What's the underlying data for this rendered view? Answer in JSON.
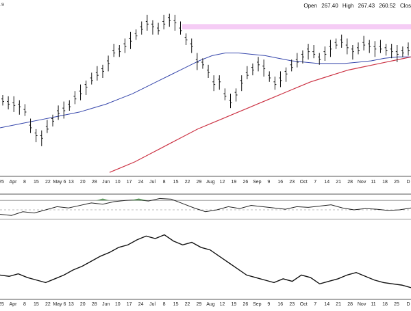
{
  "header": {
    "corner_fragment": ".9",
    "open_label": "Open",
    "open_value": "267.40",
    "high_label": "High",
    "high_value": "267.43",
    "low_value": "260.52",
    "close_label": "Clos"
  },
  "chart_data": [
    {
      "type": "ohlc-bar",
      "x_labels": [
        "25",
        "Apr",
        "8",
        "15",
        "22",
        "May 6",
        "13",
        "20",
        "28",
        "Jun",
        "10",
        "17",
        "24",
        "Jul",
        "8",
        "15",
        "22",
        "29",
        "Aug",
        "12",
        "19",
        "26",
        "Sep",
        "9",
        "16",
        "23",
        "Oct",
        "7",
        "14",
        "21",
        "28",
        "Nov",
        "11",
        "18",
        "25",
        "D"
      ],
      "series": [
        {
          "name": "price",
          "values": [
            208,
            206,
            205,
            204,
            200,
            188,
            182,
            180,
            187,
            193,
            199,
            201,
            204,
            210,
            214,
            219,
            224,
            228,
            231,
            237,
            245,
            246,
            250,
            254,
            258,
            263,
            267,
            265,
            262,
            267,
            270,
            268,
            262,
            255,
            250,
            238,
            236,
            230,
            221,
            223,
            212,
            207,
            213,
            222,
            228,
            232,
            236,
            233,
            226,
            221,
            224,
            229,
            234,
            238,
            242,
            246,
            244,
            240,
            244,
            248,
            251,
            253,
            249,
            246,
            247,
            251,
            250,
            248,
            248,
            247,
            246,
            244,
            245,
            247
          ]
        },
        {
          "name": "ma-50",
          "values": [
            187,
            189,
            191,
            193,
            195,
            197,
            199,
            202,
            205,
            209,
            213,
            218,
            223,
            228,
            233,
            238,
            242,
            244,
            244,
            243,
            242,
            240,
            238,
            237,
            236,
            236,
            236,
            237,
            238,
            240,
            241,
            241
          ]
        },
        {
          "name": "ma-200",
          "values": [
            153,
            157,
            161,
            166,
            171,
            176,
            181,
            186,
            190,
            194,
            198,
            202,
            206,
            210,
            214,
            218,
            222,
            225,
            228,
            231,
            233,
            235,
            237,
            239,
            241
          ]
        },
        {
          "name": "resistance-zone",
          "values": [
            262,
            266
          ]
        }
      ]
    },
    {
      "type": "area",
      "series": [
        {
          "name": "oscillator",
          "values": [
            48,
            46,
            52,
            50,
            55,
            60,
            58,
            62,
            66,
            64,
            68,
            70,
            71,
            69,
            73,
            72,
            65,
            58,
            52,
            55,
            60,
            57,
            62,
            60,
            58,
            56,
            60,
            59,
            61,
            63,
            58,
            55,
            57,
            56,
            54,
            55,
            58
          ]
        },
        {
          "name": "overbought-shading",
          "values": [
            71,
            73
          ]
        }
      ]
    },
    {
      "type": "line",
      "series": [
        {
          "name": "relative-strength",
          "values": [
            40,
            39,
            41,
            38,
            36,
            34,
            37,
            40,
            44,
            47,
            51,
            55,
            58,
            62,
            64,
            68,
            71,
            69,
            72,
            67,
            64,
            66,
            62,
            60,
            55,
            50,
            45,
            40,
            38,
            36,
            34,
            37,
            35,
            40,
            38,
            33,
            35,
            37,
            40,
            42,
            39,
            36,
            34,
            33,
            32,
            30
          ]
        }
      ]
    }
  ]
}
